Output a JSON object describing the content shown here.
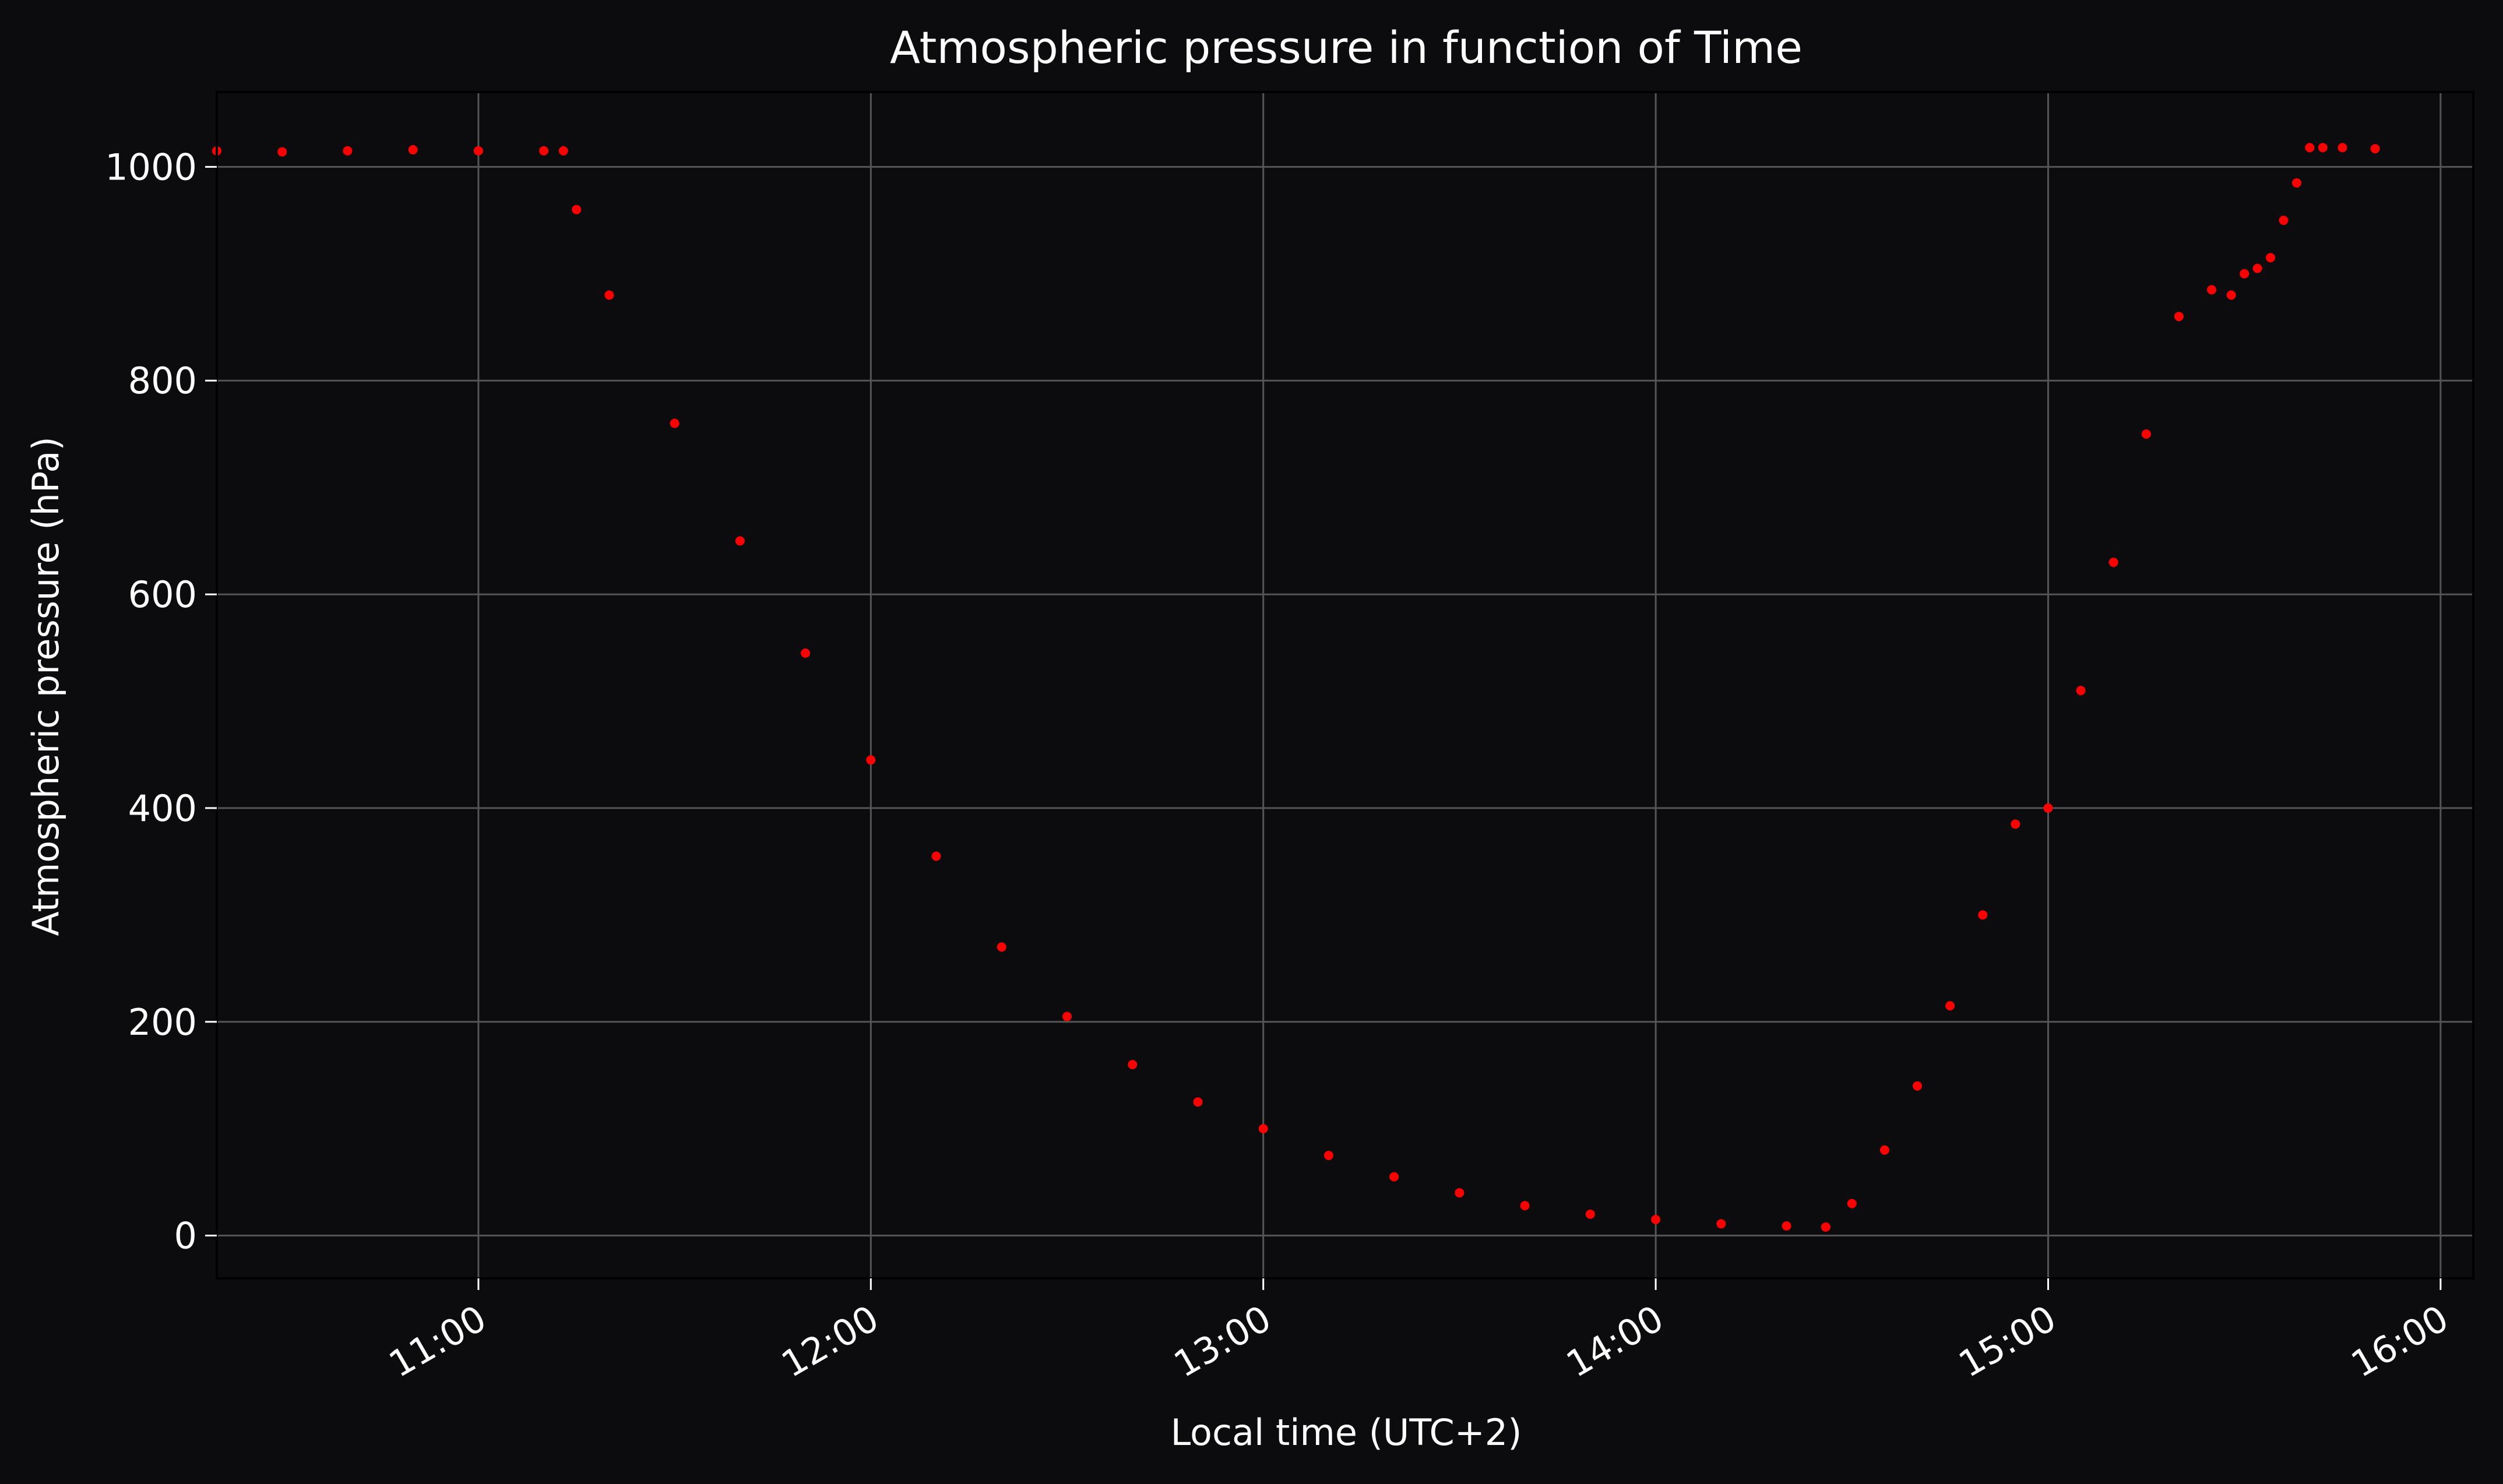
{
  "chart_data": {
    "type": "scatter",
    "title": "Atmospheric pressure in function of Time",
    "xlabel": "Local time (UTC+2)",
    "ylabel": "Atmospheric pressure (hPa)",
    "xlim": [
      "10:20",
      "16:05"
    ],
    "ylim": [
      -40,
      1070
    ],
    "x_ticks": [
      "11:00",
      "12:00",
      "13:00",
      "14:00",
      "15:00",
      "16:00"
    ],
    "y_ticks": [
      0,
      200,
      400,
      600,
      800,
      1000
    ],
    "grid": true,
    "colors": {
      "background": "#0c0c0e",
      "series": "#ff0000",
      "text": "#ffffff",
      "grid": "#555555"
    },
    "series": [
      {
        "x": [
          "10:20",
          "10:30",
          "10:40",
          "10:50",
          "11:00",
          "11:10",
          "11:13",
          "11:15",
          "11:20",
          "11:30",
          "11:40",
          "11:50",
          "12:00",
          "12:10",
          "12:20",
          "12:30",
          "12:40",
          "12:50",
          "13:00",
          "13:10",
          "13:20",
          "13:30",
          "13:40",
          "13:50",
          "14:00",
          "14:10",
          "14:20",
          "14:26",
          "14:30",
          "14:35",
          "14:40",
          "14:45",
          "14:50",
          "14:55",
          "15:00",
          "15:05",
          "15:10",
          "15:15",
          "15:20",
          "15:25",
          "15:28",
          "15:30",
          "15:32",
          "15:34",
          "15:36",
          "15:38",
          "15:40",
          "15:42",
          "15:45",
          "15:50"
        ],
        "y": [
          1015,
          1014,
          1015,
          1016,
          1015,
          1015,
          1015,
          960,
          880,
          760,
          650,
          545,
          445,
          355,
          270,
          205,
          160,
          125,
          100,
          75,
          55,
          40,
          28,
          20,
          15,
          11,
          9,
          8,
          30,
          80,
          140,
          215,
          300,
          385,
          400,
          510,
          630,
          750,
          860,
          885,
          880,
          900,
          905,
          915,
          950,
          985,
          1018,
          1018,
          1018,
          1017
        ]
      }
    ]
  }
}
